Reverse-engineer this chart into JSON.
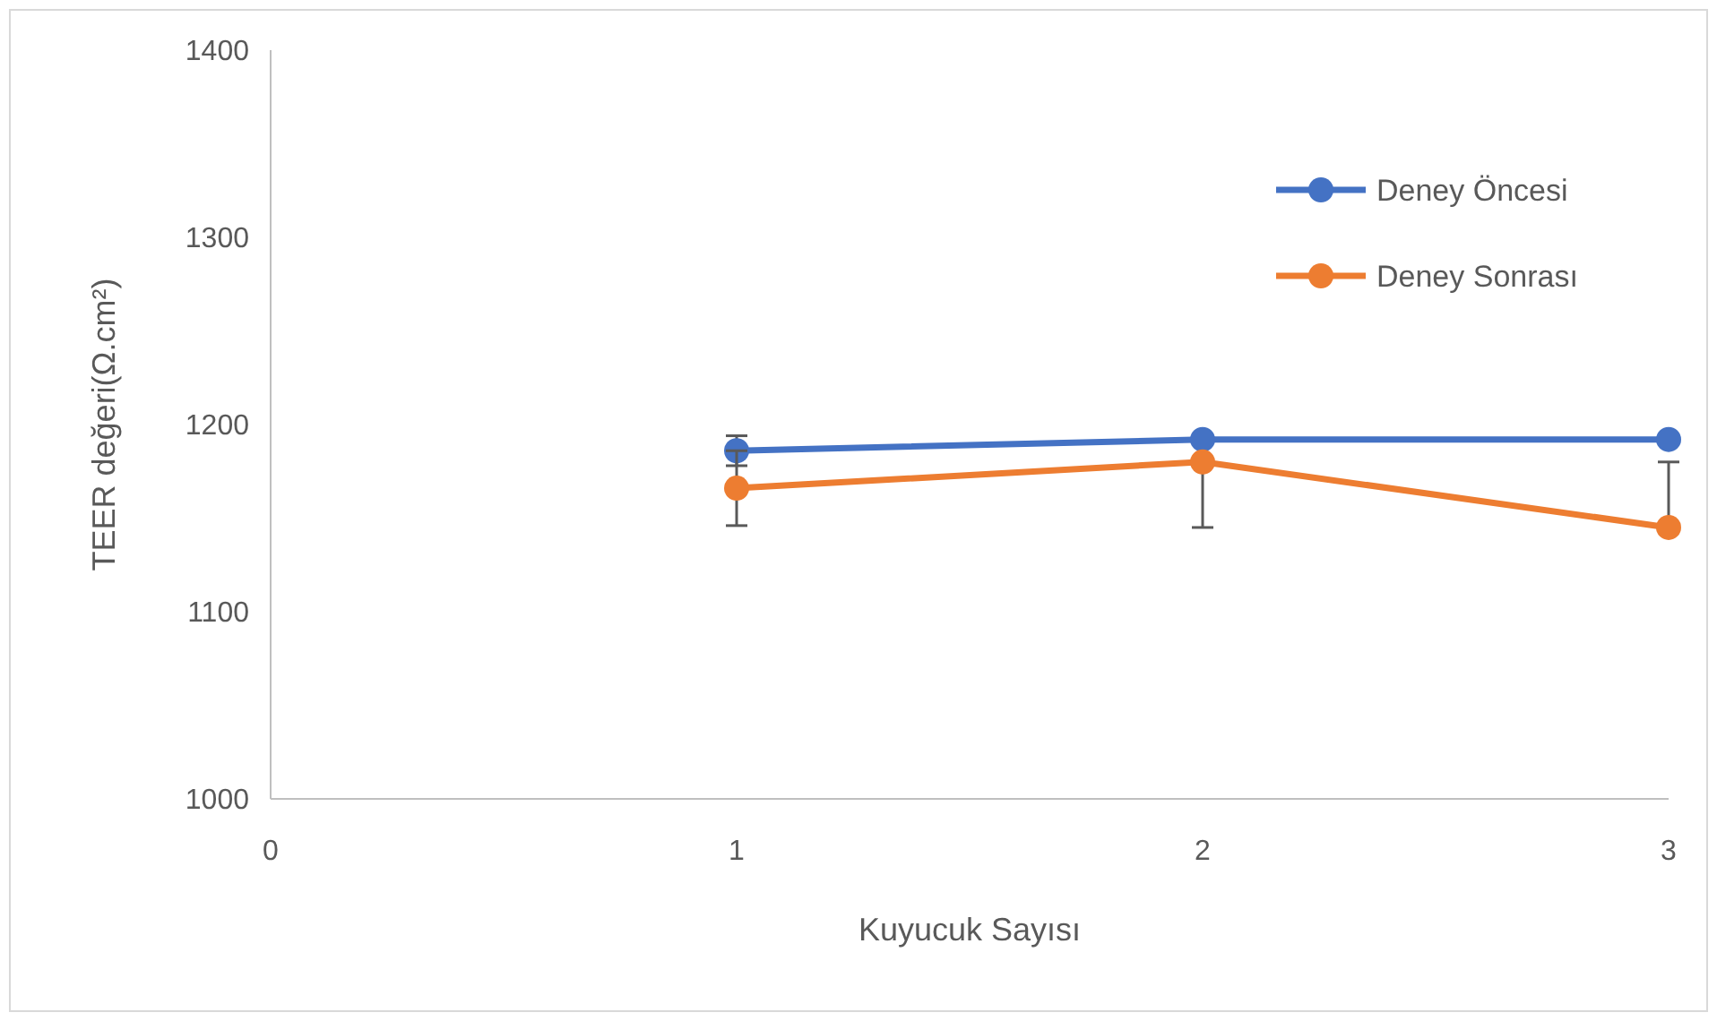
{
  "chart_data": {
    "type": "line",
    "xlabel": "Kuyucuk Sayısı",
    "ylabel": "TEER değeri(Ω.cm²)",
    "x": [
      1,
      2,
      3
    ],
    "xlim": [
      0,
      3
    ],
    "xticks": [
      0,
      1,
      2,
      3
    ],
    "ylim": [
      1000,
      1400
    ],
    "yticks": [
      1000,
      1100,
      1200,
      1300,
      1400
    ],
    "series": [
      {
        "name": "Deney Öncesi",
        "color": "#4472c4",
        "values": [
          1186,
          1192,
          1192
        ],
        "errors": [
          8,
          null,
          null
        ]
      },
      {
        "name": "Deney Sonrası",
        "color": "#ed7d31",
        "values": [
          1166,
          1180,
          1145
        ],
        "errors": [
          20,
          [
            1145,
            1180
          ],
          [
            1145,
            1180
          ]
        ]
      }
    ],
    "marker": "circle",
    "legend": "top right",
    "grid": false
  }
}
